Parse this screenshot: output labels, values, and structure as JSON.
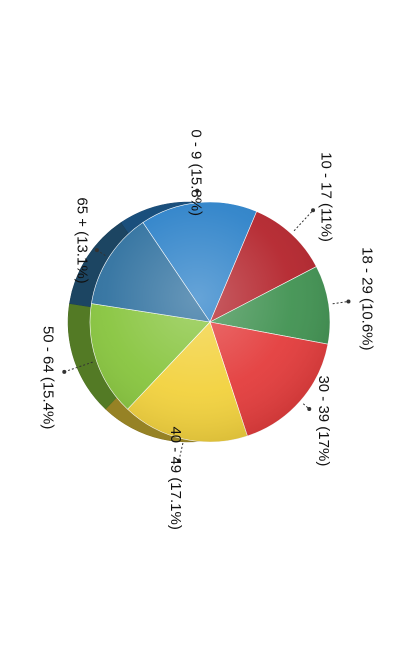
{
  "chart_data": {
    "type": "pie",
    "style": "3d",
    "rotation": "90deg-clockwise",
    "categories": [
      "0 - 9",
      "10 - 17",
      "18 - 29",
      "30 - 39",
      "40 - 49",
      "50 - 64",
      "65 +"
    ],
    "values": [
      15.8,
      11,
      10.6,
      17,
      17.1,
      15.4,
      13.1
    ],
    "labels": [
      "0 - 9 (15.8%)",
      "10 - 17 (11%)",
      "18 - 29 (10.6%)",
      "30 - 39 (17%)",
      "40 - 49 (17.1%)",
      "50 - 64 (15.4%)",
      "65 + (13.1%)"
    ],
    "colors": [
      "#2a80c8",
      "#b3222a",
      "#3f9150",
      "#e33a3a",
      "#f2d13b",
      "#86c43c",
      "#2d6f9e"
    ],
    "legend": "none"
  }
}
